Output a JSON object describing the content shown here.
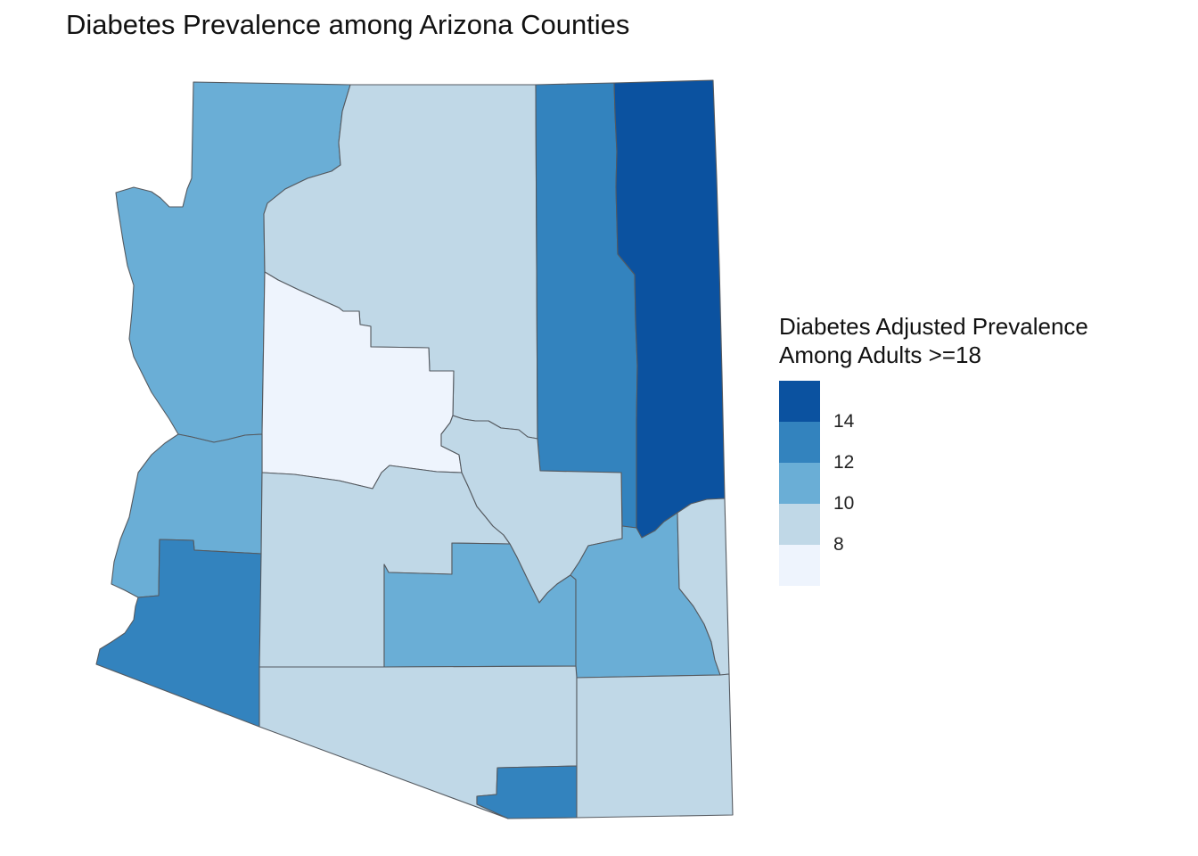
{
  "title": "Diabetes Prevalence among Arizona Counties",
  "legend": {
    "title_line1": "Diabetes Adjusted Prevalence",
    "title_line2": "Among Adults >=18",
    "ticks": [
      "14",
      "12",
      "10",
      "8"
    ],
    "bins": [
      {
        "color": "#0b52a0"
      },
      {
        "color": "#3383be"
      },
      {
        "color": "#6aaed6"
      },
      {
        "color": "#c0d8e7"
      },
      {
        "color": "#eef4fd"
      }
    ]
  },
  "counties": [
    {
      "name": "mohave",
      "color": "#6aaed6"
    },
    {
      "name": "coconino",
      "color": "#c0d8e7"
    },
    {
      "name": "navajo",
      "color": "#3383be"
    },
    {
      "name": "apache",
      "color": "#0b52a0"
    },
    {
      "name": "yavapai",
      "color": "#eef4fd"
    },
    {
      "name": "la-paz",
      "color": "#6aaed6"
    },
    {
      "name": "yuma",
      "color": "#3383be"
    },
    {
      "name": "maricopa",
      "color": "#c0d8e7"
    },
    {
      "name": "gila",
      "color": "#c0d8e7"
    },
    {
      "name": "pinal",
      "color": "#6aaed6"
    },
    {
      "name": "graham",
      "color": "#6aaed6"
    },
    {
      "name": "greenlee",
      "color": "#c0d8e7"
    },
    {
      "name": "pima",
      "color": "#c0d8e7"
    },
    {
      "name": "santa-cruz",
      "color": "#3383be"
    },
    {
      "name": "cochise",
      "color": "#c0d8e7"
    }
  ]
}
